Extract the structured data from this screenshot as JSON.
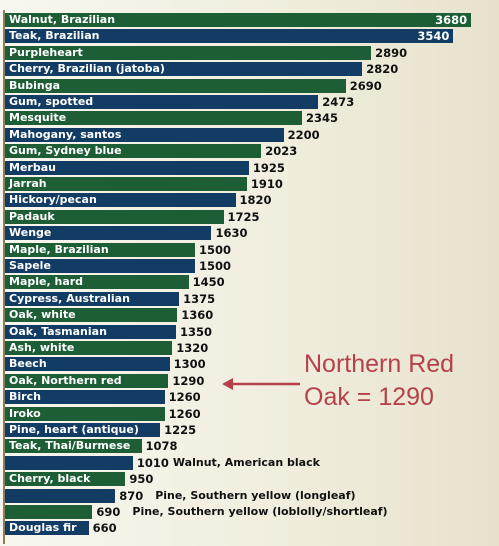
{
  "chart_data": {
    "type": "bar",
    "orientation": "horizontal",
    "title": "",
    "xlabel": "",
    "ylabel": "",
    "xlim": [
      0,
      3750
    ],
    "grid": false,
    "legend": "none",
    "colors": {
      "dark_green": "#1d5e36",
      "dark_blue": "#123c64",
      "background": "#f1eedf",
      "annotation": "#b5424a"
    },
    "bars": [
      {
        "label": "Walnut, Brazilian",
        "value": 3680,
        "color": "dark_green",
        "label_inside": true
      },
      {
        "label": "Teak, Brazilian",
        "value": 3540,
        "color": "dark_blue",
        "label_inside": true
      },
      {
        "label": "Purpleheart",
        "value": 2890,
        "color": "dark_green",
        "label_inside": true
      },
      {
        "label": "Cherry, Brazilian (jatoba)",
        "value": 2820,
        "color": "dark_blue",
        "label_inside": true
      },
      {
        "label": "Bubinga",
        "value": 2690,
        "color": "dark_green",
        "label_inside": true
      },
      {
        "label": "Gum, spotted",
        "value": 2473,
        "color": "dark_blue",
        "label_inside": true
      },
      {
        "label": "Mesquite",
        "value": 2345,
        "color": "dark_green",
        "label_inside": true
      },
      {
        "label": "Mahogany, santos",
        "value": 2200,
        "color": "dark_blue",
        "label_inside": true
      },
      {
        "label": "Gum, Sydney blue",
        "value": 2023,
        "color": "dark_green",
        "label_inside": true
      },
      {
        "label": "Merbau",
        "value": 1925,
        "color": "dark_blue",
        "label_inside": true
      },
      {
        "label": "Jarrah",
        "value": 1910,
        "color": "dark_green",
        "label_inside": true
      },
      {
        "label": "Hickory/pecan",
        "value": 1820,
        "color": "dark_blue",
        "label_inside": true
      },
      {
        "label": "Padauk",
        "value": 1725,
        "color": "dark_green",
        "label_inside": true
      },
      {
        "label": "Wenge",
        "value": 1630,
        "color": "dark_blue",
        "label_inside": true
      },
      {
        "label": "Maple, Brazilian",
        "value": 1500,
        "color": "dark_green",
        "label_inside": true
      },
      {
        "label": "Sapele",
        "value": 1500,
        "color": "dark_blue",
        "label_inside": true
      },
      {
        "label": "Maple, hard",
        "value": 1450,
        "color": "dark_green",
        "label_inside": true
      },
      {
        "label": "Cypress, Australian",
        "value": 1375,
        "color": "dark_blue",
        "label_inside": true
      },
      {
        "label": "Oak, white",
        "value": 1360,
        "color": "dark_green",
        "label_inside": true
      },
      {
        "label": "Oak, Tasmanian",
        "value": 1350,
        "color": "dark_blue",
        "label_inside": true
      },
      {
        "label": "Ash, white",
        "value": 1320,
        "color": "dark_green",
        "label_inside": true
      },
      {
        "label": "Beech",
        "value": 1300,
        "color": "dark_blue",
        "label_inside": true
      },
      {
        "label": "Oak, Northern red",
        "value": 1290,
        "color": "dark_green",
        "label_inside": true
      },
      {
        "label": "Birch",
        "value": 1260,
        "color": "dark_blue",
        "label_inside": true
      },
      {
        "label": "Iroko",
        "value": 1260,
        "color": "dark_green",
        "label_inside": true
      },
      {
        "label": "Pine, heart (antique)",
        "value": 1225,
        "color": "dark_blue",
        "label_inside": true
      },
      {
        "label": "Teak, Thai/Burmese",
        "value": 1078,
        "color": "dark_green",
        "label_inside": true
      },
      {
        "label": "Walnut, American black",
        "value": 1010,
        "color": "dark_blue",
        "label_inside": false
      },
      {
        "label": "Cherry, black",
        "value": 950,
        "color": "dark_green",
        "label_inside": true
      },
      {
        "label": "Pine, Southern yellow (longleaf)",
        "value": 870,
        "color": "dark_blue",
        "label_inside": false
      },
      {
        "label": "Pine, Southern yellow (loblolly/shortleaf)",
        "value": 690,
        "color": "dark_green",
        "label_inside": false
      },
      {
        "label": "Douglas fir",
        "value": 660,
        "color": "dark_blue",
        "label_inside": true
      }
    ],
    "annotations": [
      {
        "text_lines": [
          "Northern Red",
          "Oak = 1290"
        ],
        "points_to": "Oak, Northern red"
      }
    ]
  }
}
